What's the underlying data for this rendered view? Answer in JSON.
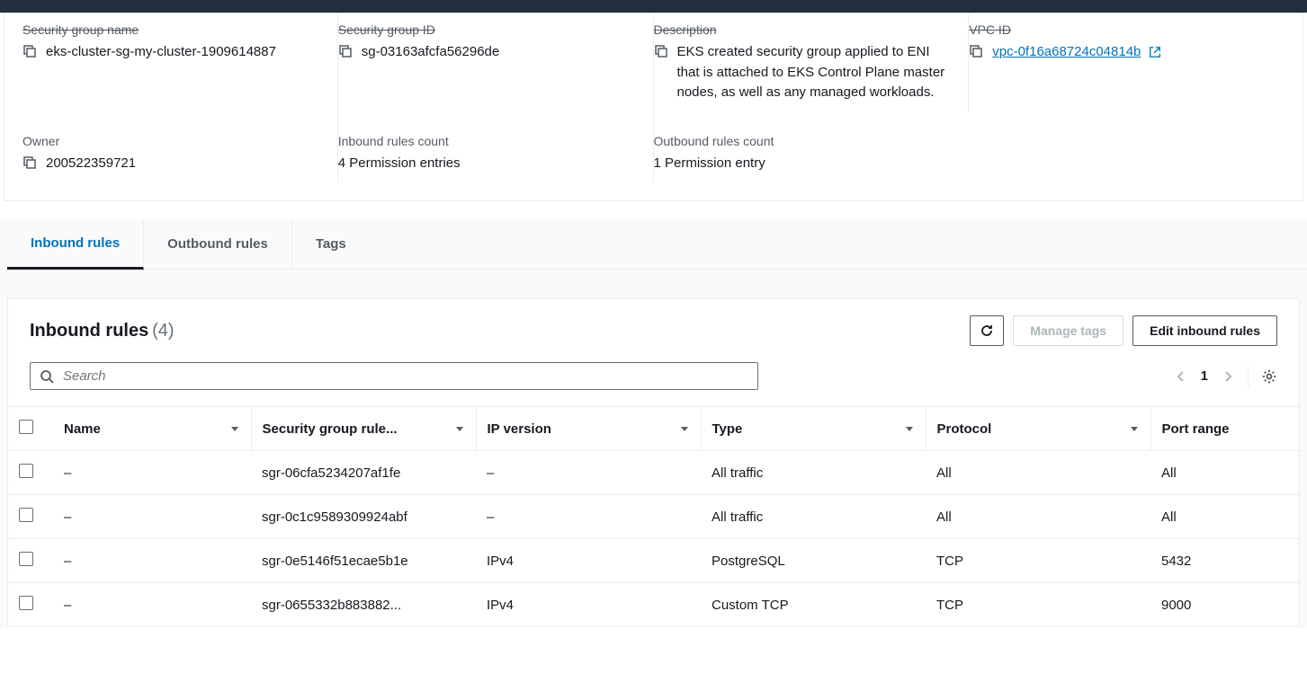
{
  "topbar": {
    "bg": "#232f3e"
  },
  "details": {
    "labels": {
      "sg_name": "Security group name",
      "sg_id": "Security group ID",
      "description": "Description",
      "vpc_id": "VPC ID",
      "owner": "Owner",
      "inbound_count": "Inbound rules count",
      "outbound_count": "Outbound rules count"
    },
    "values": {
      "sg_name": "eks-cluster-sg-my-cluster-1909614887",
      "sg_id": "sg-03163afcfa56296de",
      "description": "EKS created security group applied to ENI that is attached to EKS Control Plane master nodes, as well as any managed workloads.",
      "vpc_id": "vpc-0f16a68724c04814b",
      "owner": "200522359721",
      "inbound_count": "4 Permission entries",
      "outbound_count": "1 Permission entry"
    }
  },
  "tabs": {
    "inbound": "Inbound rules",
    "outbound": "Outbound rules",
    "tags": "Tags"
  },
  "inbound_section": {
    "title": "Inbound rules",
    "count_display": "(4)",
    "actions": {
      "manage_tags": "Manage tags",
      "edit_rules": "Edit inbound rules"
    },
    "search_placeholder": "Search",
    "pager": {
      "page": "1"
    },
    "table": {
      "columns": {
        "name": "Name",
        "sgr": "Security group rule...",
        "ipv": "IP version",
        "type": "Type",
        "protocol": "Protocol",
        "port": "Port range"
      },
      "rows": [
        {
          "name": "–",
          "sgr": "sgr-06cfa5234207af1fe",
          "ipv": "–",
          "type": "All traffic",
          "protocol": "All",
          "port": "All"
        },
        {
          "name": "–",
          "sgr": "sgr-0c1c9589309924abf",
          "ipv": "–",
          "type": "All traffic",
          "protocol": "All",
          "port": "All"
        },
        {
          "name": "–",
          "sgr": "sgr-0e5146f51ecae5b1e",
          "ipv": "IPv4",
          "type": "PostgreSQL",
          "protocol": "TCP",
          "port": "5432"
        },
        {
          "name": "–",
          "sgr": "sgr-0655332b883882...",
          "ipv": "IPv4",
          "type": "Custom TCP",
          "protocol": "TCP",
          "port": "9000"
        }
      ]
    }
  },
  "colors": {
    "link": "#0073bb",
    "border": "#eaeded",
    "muted": "#545b64",
    "bg_alt": "#fafafa"
  }
}
